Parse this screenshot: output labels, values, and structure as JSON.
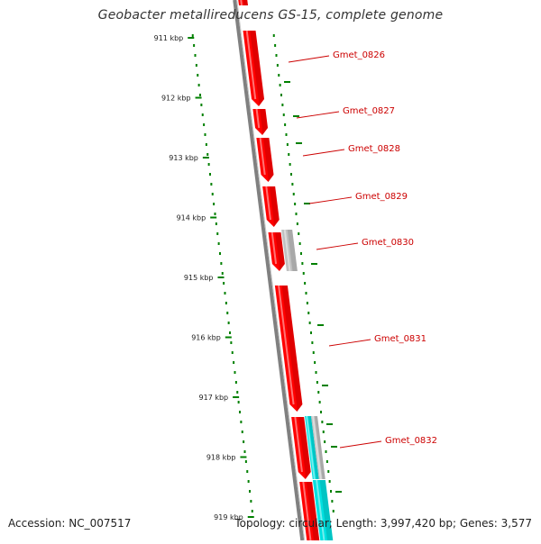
{
  "map": {
    "title": "Geobacter metallireducens GS-15, complete genome",
    "accession": "Accession: NC_007517",
    "summary": "Topology: circular; Length: 3,997,420 bp; Genes: 3,577"
  },
  "colors": {
    "cds": "#ff0000",
    "other_feature": "#c0c0c0",
    "rna": "#00e0e0",
    "backbone": "#808080",
    "gc_skew": "#008000",
    "label": "#cc0000"
  },
  "ticks": [
    {
      "label": "911 kbp",
      "kbp": 911
    },
    {
      "label": "912 kbp",
      "kbp": 912
    },
    {
      "label": "913 kbp",
      "kbp": 913
    },
    {
      "label": "914 kbp",
      "kbp": 914
    },
    {
      "label": "915 kbp",
      "kbp": 915
    },
    {
      "label": "916 kbp",
      "kbp": 916
    },
    {
      "label": "917 kbp",
      "kbp": 917
    },
    {
      "label": "918 kbp",
      "kbp": 918
    },
    {
      "label": "919 kbp",
      "kbp": 919
    }
  ],
  "genes": [
    {
      "name": "Gmet_0826"
    },
    {
      "name": "Gmet_0827"
    },
    {
      "name": "Gmet_0828"
    },
    {
      "name": "Gmet_0829"
    },
    {
      "name": "Gmet_0830"
    },
    {
      "name": "Gmet_0831"
    },
    {
      "name": "Gmet_0832"
    }
  ]
}
